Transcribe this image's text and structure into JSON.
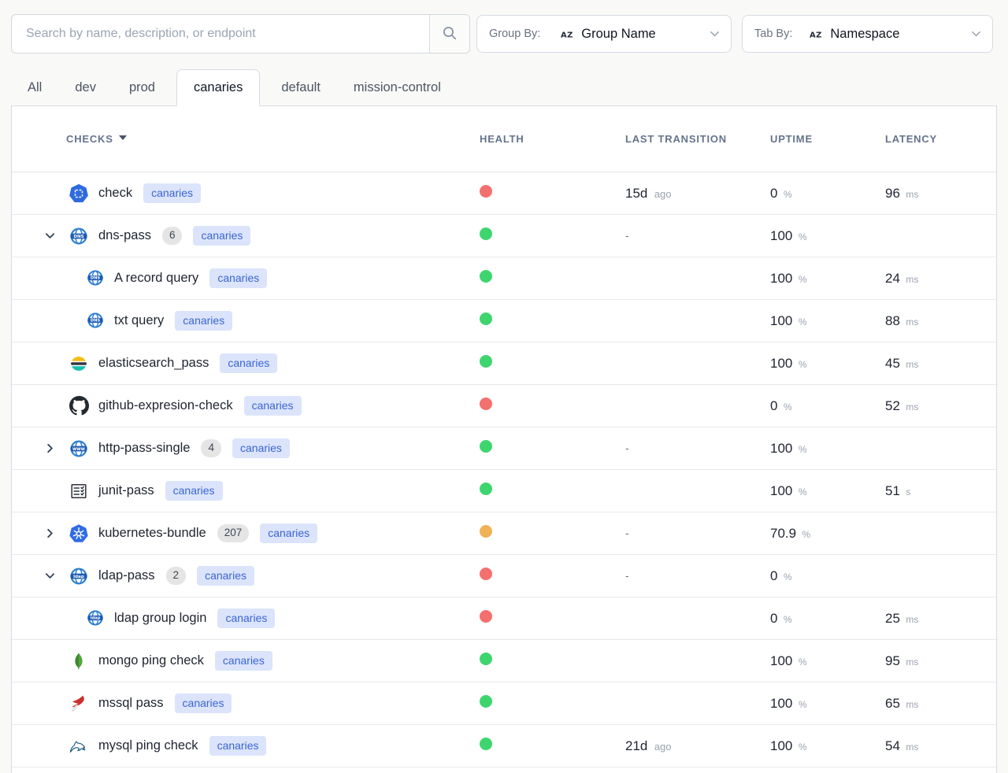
{
  "toolbar": {
    "search": {
      "placeholder": "Search by name, description, or endpoint"
    },
    "group_by": {
      "label": "Group By:",
      "value": "Group Name"
    },
    "tab_by": {
      "label": "Tab By:",
      "value": "Namespace"
    }
  },
  "tabs": [
    {
      "label": "All",
      "active": false
    },
    {
      "label": "dev",
      "active": false
    },
    {
      "label": "prod",
      "active": false
    },
    {
      "label": "canaries",
      "active": true
    },
    {
      "label": "default",
      "active": false
    },
    {
      "label": "mission-control",
      "active": false
    }
  ],
  "table": {
    "columns": [
      {
        "label": "CHECKS",
        "sorted": true
      },
      {
        "label": "HEALTH",
        "sorted": false
      },
      {
        "label": "LAST TRANSITION",
        "sorted": false
      },
      {
        "label": "UPTIME",
        "sorted": false
      },
      {
        "label": "LATENCY",
        "sorted": false
      }
    ],
    "rows": [
      {
        "name": "check",
        "icon": "canary-check",
        "level": 0,
        "expand": null,
        "count": null,
        "namespace": "canaries",
        "health": "red",
        "last_transition": {
          "value": "15d",
          "suffix": "ago"
        },
        "uptime": {
          "value": "0",
          "unit": "%"
        },
        "latency": {
          "value": "96",
          "unit": "ms"
        }
      },
      {
        "name": "dns-pass",
        "icon": "dns",
        "level": 0,
        "expand": "expanded",
        "count": "6",
        "namespace": "canaries",
        "health": "green",
        "last_transition": {
          "value": "-",
          "suffix": ""
        },
        "uptime": {
          "value": "100",
          "unit": "%"
        },
        "latency": null
      },
      {
        "name": "A record query",
        "icon": "dns",
        "level": 1,
        "expand": null,
        "count": null,
        "namespace": "canaries",
        "health": "green",
        "last_transition": null,
        "uptime": {
          "value": "100",
          "unit": "%"
        },
        "latency": {
          "value": "24",
          "unit": "ms"
        }
      },
      {
        "name": "txt query",
        "icon": "dns",
        "level": 1,
        "expand": null,
        "count": null,
        "namespace": "canaries",
        "health": "green",
        "last_transition": null,
        "uptime": {
          "value": "100",
          "unit": "%"
        },
        "latency": {
          "value": "88",
          "unit": "ms"
        }
      },
      {
        "name": "elasticsearch_pass",
        "icon": "elasticsearch",
        "level": 0,
        "expand": null,
        "count": null,
        "namespace": "canaries",
        "health": "green",
        "last_transition": null,
        "uptime": {
          "value": "100",
          "unit": "%"
        },
        "latency": {
          "value": "45",
          "unit": "ms"
        }
      },
      {
        "name": "github-expresion-check",
        "icon": "github",
        "level": 0,
        "expand": null,
        "count": null,
        "namespace": "canaries",
        "health": "red",
        "last_transition": null,
        "uptime": {
          "value": "0",
          "unit": "%"
        },
        "latency": {
          "value": "52",
          "unit": "ms"
        }
      },
      {
        "name": "http-pass-single",
        "icon": "www",
        "level": 0,
        "expand": "collapsed",
        "count": "4",
        "namespace": "canaries",
        "health": "green",
        "last_transition": {
          "value": "-",
          "suffix": ""
        },
        "uptime": {
          "value": "100",
          "unit": "%"
        },
        "latency": null
      },
      {
        "name": "junit-pass",
        "icon": "junit",
        "level": 0,
        "expand": null,
        "count": null,
        "namespace": "canaries",
        "health": "green",
        "last_transition": null,
        "uptime": {
          "value": "100",
          "unit": "%"
        },
        "latency": {
          "value": "51",
          "unit": "s"
        }
      },
      {
        "name": "kubernetes-bundle",
        "icon": "kubernetes",
        "level": 0,
        "expand": "collapsed",
        "count": "207",
        "namespace": "canaries",
        "health": "orange",
        "last_transition": {
          "value": "-",
          "suffix": ""
        },
        "uptime": {
          "value": "70.9",
          "unit": "%"
        },
        "latency": null
      },
      {
        "name": "ldap-pass",
        "icon": "ldap",
        "level": 0,
        "expand": "expanded",
        "count": "2",
        "namespace": "canaries",
        "health": "red",
        "last_transition": {
          "value": "-",
          "suffix": ""
        },
        "uptime": {
          "value": "0",
          "unit": "%"
        },
        "latency": null
      },
      {
        "name": "ldap group login",
        "icon": "ldap",
        "level": 1,
        "expand": null,
        "count": null,
        "namespace": "canaries",
        "health": "red",
        "last_transition": null,
        "uptime": {
          "value": "0",
          "unit": "%"
        },
        "latency": {
          "value": "25",
          "unit": "ms"
        }
      },
      {
        "name": "mongo ping check",
        "icon": "mongo",
        "level": 0,
        "expand": null,
        "count": null,
        "namespace": "canaries",
        "health": "green",
        "last_transition": null,
        "uptime": {
          "value": "100",
          "unit": "%"
        },
        "latency": {
          "value": "95",
          "unit": "ms"
        }
      },
      {
        "name": "mssql pass",
        "icon": "mssql",
        "level": 0,
        "expand": null,
        "count": null,
        "namespace": "canaries",
        "health": "green",
        "last_transition": null,
        "uptime": {
          "value": "100",
          "unit": "%"
        },
        "latency": {
          "value": "65",
          "unit": "ms"
        }
      },
      {
        "name": "mysql ping check",
        "icon": "mysql",
        "level": 0,
        "expand": null,
        "count": null,
        "namespace": "canaries",
        "health": "green",
        "last_transition": {
          "value": "21d",
          "suffix": "ago"
        },
        "uptime": {
          "value": "100",
          "unit": "%"
        },
        "latency": {
          "value": "54",
          "unit": "ms"
        }
      }
    ]
  },
  "colors": {
    "health_red": "#f3706e",
    "health_green": "#3ed56f",
    "health_orange": "#f0b257",
    "badge_bg": "#dbe4fa",
    "badge_text": "#3b65d4",
    "accent_blue": "#2f6be0"
  }
}
